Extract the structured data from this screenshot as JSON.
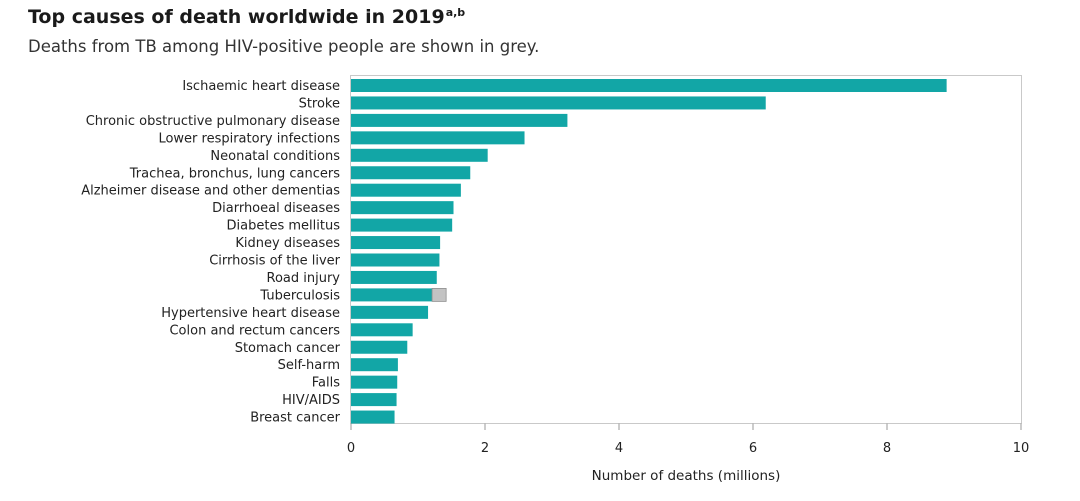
{
  "title": "Top causes of death worldwide in 2019",
  "title_superscript": "a,b",
  "subtitle": "Deaths from TB among HIV-positive people are shown in grey.",
  "chart_data": {
    "type": "bar",
    "orientation": "horizontal",
    "stacked": true,
    "categories": [
      "Ischaemic heart disease",
      "Stroke",
      "Chronic obstructive pulmonary disease",
      "Lower respiratory infections",
      "Neonatal conditions",
      "Trachea, bronchus, lung cancers",
      "Alzheimer disease and other dementias",
      "Diarrhoeal diseases",
      "Diabetes mellitus",
      "Kidney diseases",
      "Cirrhosis of the liver",
      "Road injury",
      "Tuberculosis",
      "Hypertensive heart disease",
      "Colon and rectum cancers",
      "Stomach cancer",
      "Self-harm",
      "Falls",
      "HIV/AIDS",
      "Breast cancer"
    ],
    "series": [
      {
        "values": [
          8.89,
          6.19,
          3.23,
          2.59,
          2.04,
          1.78,
          1.64,
          1.53,
          1.51,
          1.33,
          1.32,
          1.28,
          1.21,
          1.15,
          0.92,
          0.84,
          0.7,
          0.69,
          0.68,
          0.65
        ],
        "color": "#12a6a6"
      },
      {
        "values": [
          0,
          0,
          0,
          0,
          0,
          0,
          0,
          0,
          0,
          0,
          0,
          0,
          0.21,
          0,
          0,
          0,
          0,
          0,
          0,
          0
        ],
        "color": "#c3c3c3"
      }
    ],
    "xlim": [
      0,
      10
    ],
    "xticks": [
      "0",
      "2",
      "4",
      "6",
      "8",
      "10"
    ],
    "xlabel": "Number of deaths (millions)",
    "ylabel": "",
    "grid": false,
    "legend": "none"
  }
}
